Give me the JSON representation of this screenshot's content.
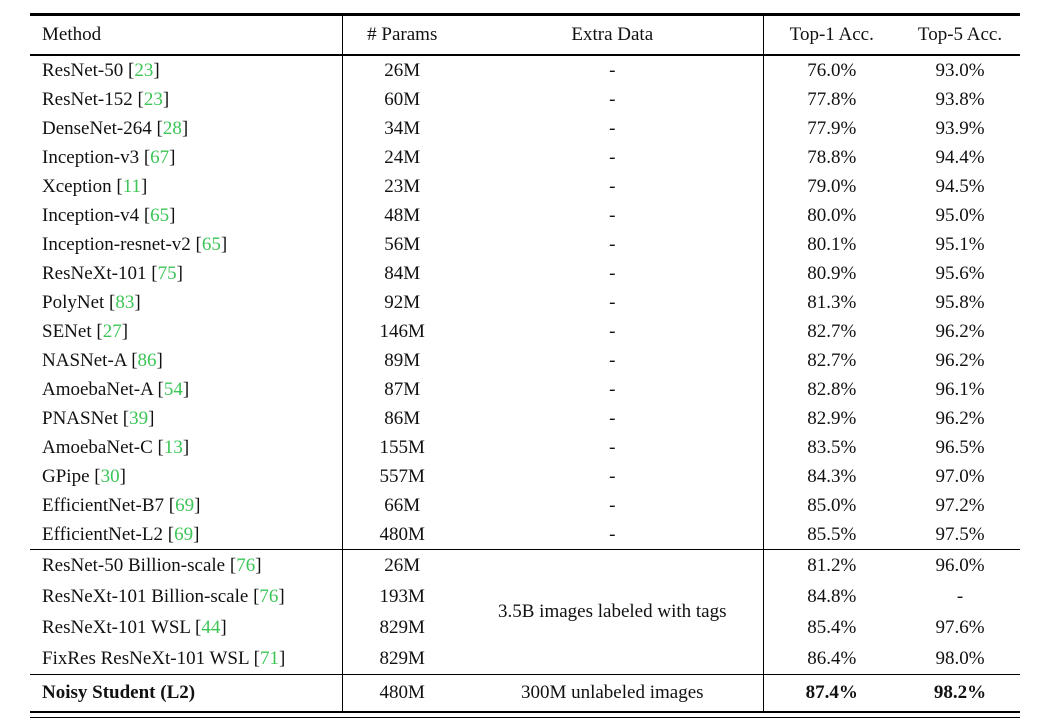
{
  "colors": {
    "citation": "#3cc556",
    "text": "#111111",
    "rule": "#000000",
    "background": "#ffffff"
  },
  "table": {
    "headers": [
      "Method",
      "# Params",
      "Extra Data",
      "Top-1 Acc.",
      "Top-5 Acc."
    ],
    "sections": [
      {
        "rows": [
          {
            "method": "ResNet-50",
            "cite": "23",
            "params": "26M",
            "extra": "-",
            "top1": "76.0%",
            "top5": "93.0%"
          },
          {
            "method": "ResNet-152",
            "cite": "23",
            "params": "60M",
            "extra": "-",
            "top1": "77.8%",
            "top5": "93.8%"
          },
          {
            "method": "DenseNet-264",
            "cite": "28",
            "params": "34M",
            "extra": "-",
            "top1": "77.9%",
            "top5": "93.9%"
          },
          {
            "method": "Inception-v3",
            "cite": "67",
            "params": "24M",
            "extra": "-",
            "top1": "78.8%",
            "top5": "94.4%"
          },
          {
            "method": "Xception",
            "cite": "11",
            "params": "23M",
            "extra": "-",
            "top1": "79.0%",
            "top5": "94.5%"
          },
          {
            "method": "Inception-v4",
            "cite": "65",
            "params": "48M",
            "extra": "-",
            "top1": "80.0%",
            "top5": "95.0%"
          },
          {
            "method": "Inception-resnet-v2",
            "cite": "65",
            "params": "56M",
            "extra": "-",
            "top1": "80.1%",
            "top5": "95.1%"
          },
          {
            "method": "ResNeXt-101",
            "cite": "75",
            "params": "84M",
            "extra": "-",
            "top1": "80.9%",
            "top5": "95.6%"
          },
          {
            "method": "PolyNet",
            "cite": "83",
            "params": "92M",
            "extra": "-",
            "top1": "81.3%",
            "top5": "95.8%"
          },
          {
            "method": "SENet",
            "cite": "27",
            "params": "146M",
            "extra": "-",
            "top1": "82.7%",
            "top5": "96.2%"
          },
          {
            "method": "NASNet-A",
            "cite": "86",
            "params": "89M",
            "extra": "-",
            "top1": "82.7%",
            "top5": "96.2%"
          },
          {
            "method": "AmoebaNet-A",
            "cite": "54",
            "params": "87M",
            "extra": "-",
            "top1": "82.8%",
            "top5": "96.1%"
          },
          {
            "method": "PNASNet",
            "cite": "39",
            "params": "86M",
            "extra": "-",
            "top1": "82.9%",
            "top5": "96.2%"
          },
          {
            "method": "AmoebaNet-C",
            "cite": "13",
            "params": "155M",
            "extra": "-",
            "top1": "83.5%",
            "top5": "96.5%"
          },
          {
            "method": "GPipe",
            "cite": "30",
            "params": "557M",
            "extra": "-",
            "top1": "84.3%",
            "top5": "97.0%"
          },
          {
            "method": "EfficientNet-B7",
            "cite": "69",
            "params": "66M",
            "extra": "-",
            "top1": "85.0%",
            "top5": "97.2%"
          },
          {
            "method": "EfficientNet-L2",
            "cite": "69",
            "params": "480M",
            "extra": "-",
            "top1": "85.5%",
            "top5": "97.5%"
          }
        ]
      },
      {
        "extra_shared": "3.5B images labeled with tags",
        "rows": [
          {
            "method": "ResNet-50 Billion-scale",
            "cite": "76",
            "params": "26M",
            "top1": "81.2%",
            "top5": "96.0%"
          },
          {
            "method": "ResNeXt-101 Billion-scale",
            "cite": "76",
            "params": "193M",
            "top1": "84.8%",
            "top5": "-"
          },
          {
            "method": "ResNeXt-101 WSL",
            "cite": "44",
            "params": "829M",
            "top1": "85.4%",
            "top5": "97.6%"
          },
          {
            "method": "FixRes ResNeXt-101 WSL",
            "cite": "71",
            "params": "829M",
            "top1": "86.4%",
            "top5": "98.0%"
          }
        ]
      },
      {
        "bold": true,
        "rows": [
          {
            "method": "Noisy Student (L2)",
            "params": "480M",
            "extra": "300M unlabeled images",
            "top1": "87.4%",
            "top5": "98.2%"
          }
        ]
      }
    ]
  }
}
